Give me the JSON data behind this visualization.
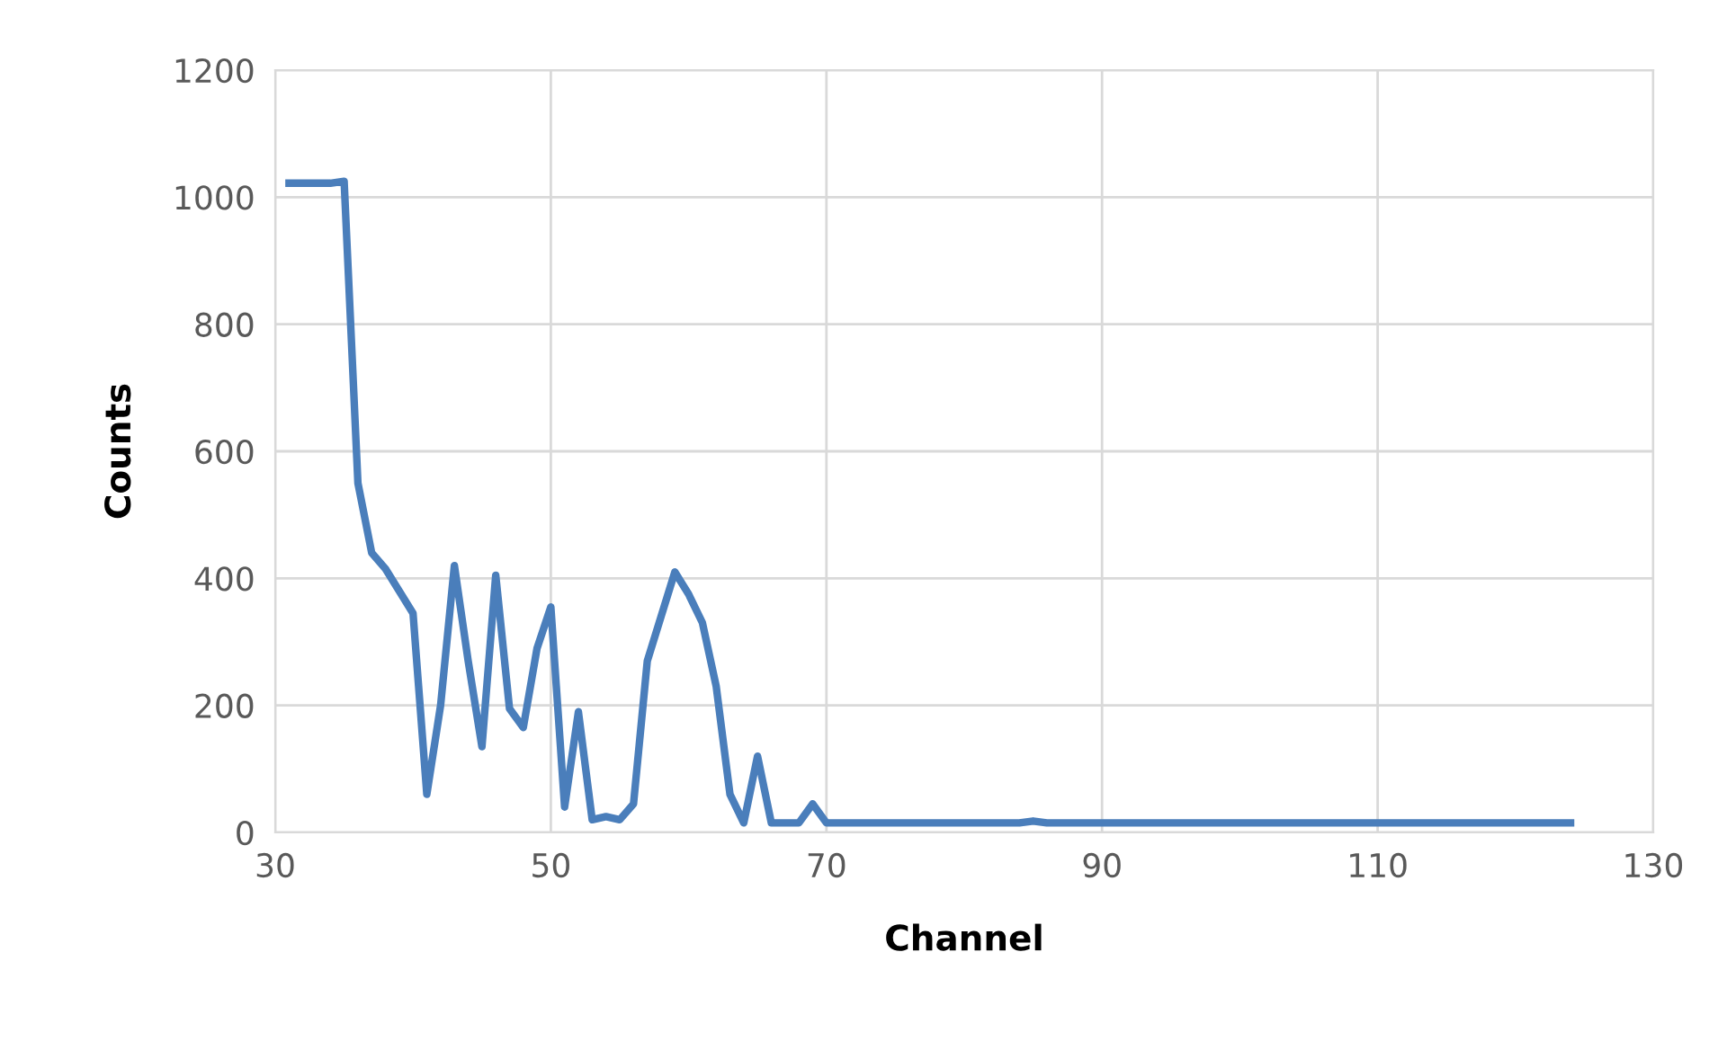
{
  "chart_data": {
    "type": "line",
    "xlabel": "Channel",
    "ylabel": "Counts",
    "x": [
      31,
      32,
      33,
      34,
      35,
      36,
      37,
      38,
      39,
      40,
      41,
      42,
      43,
      44,
      45,
      46,
      47,
      48,
      49,
      50,
      51,
      52,
      53,
      54,
      55,
      56,
      57,
      58,
      59,
      60,
      61,
      62,
      63,
      64,
      65,
      66,
      67,
      68,
      69,
      70,
      71,
      72,
      75,
      80,
      84,
      85,
      86,
      90,
      100,
      110,
      120,
      124
    ],
    "series": [
      {
        "color": "#4a7ebb",
        "values": [
          1022,
          1022,
          1022,
          1022,
          1025,
          550,
          440,
          415,
          380,
          345,
          60,
          200,
          420,
          270,
          135,
          405,
          195,
          165,
          290,
          355,
          40,
          190,
          20,
          25,
          20,
          45,
          270,
          340,
          410,
          375,
          330,
          230,
          60,
          15,
          120,
          15,
          15,
          15,
          45,
          15,
          15,
          15,
          15,
          15,
          15,
          18,
          15,
          15,
          15,
          15,
          15,
          15
        ]
      }
    ],
    "xlim": [
      30,
      130
    ],
    "xticks": [
      30,
      50,
      70,
      90,
      110,
      130
    ],
    "ylim": [
      0,
      1200
    ],
    "yticks": [
      0,
      200,
      400,
      600,
      800,
      1000,
      1200
    ],
    "grid": true,
    "legend": false,
    "marker": "none",
    "line_style": "solid"
  }
}
